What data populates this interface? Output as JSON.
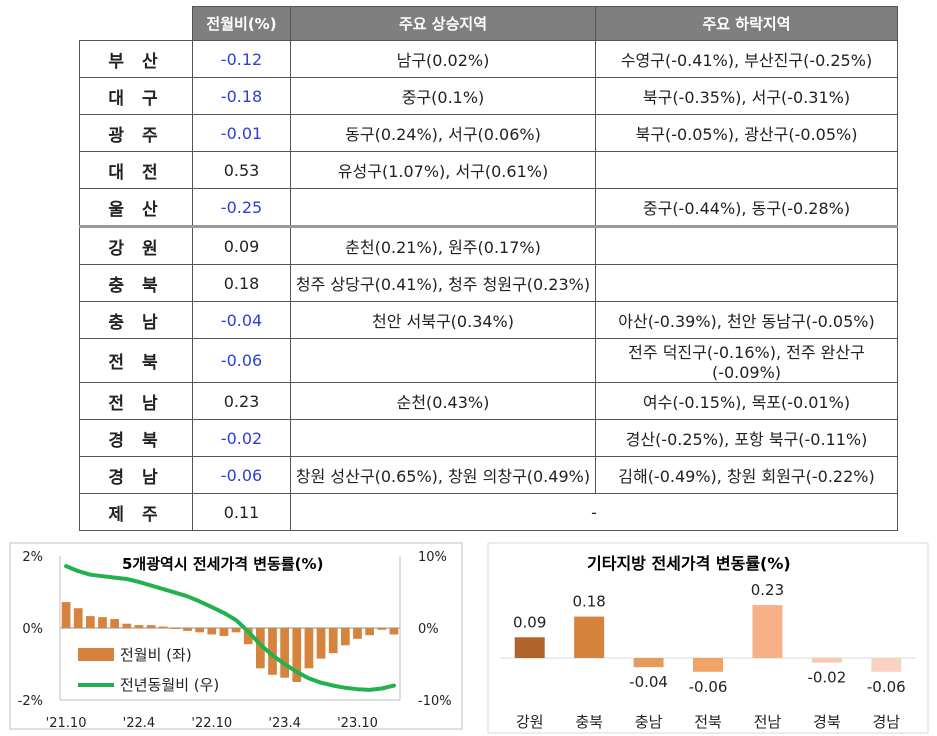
{
  "table": {
    "headers": [
      "",
      "전월비(%)",
      "주요 상승지역",
      "주요 하락지역"
    ],
    "rows": [
      {
        "region": "부 산",
        "value": "-0.12",
        "neg": true,
        "up": "남구(0.02%)",
        "down": "수영구(-0.41%), 부산진구(-0.25%)"
      },
      {
        "region": "대 구",
        "value": "-0.18",
        "neg": true,
        "up": "중구(0.1%)",
        "down": "북구(-0.35%), 서구(-0.31%)"
      },
      {
        "region": "광 주",
        "value": "-0.01",
        "neg": true,
        "up": "동구(0.24%), 서구(0.06%)",
        "down": "북구(-0.05%), 광산구(-0.05%)"
      },
      {
        "region": "대 전",
        "value": "0.53",
        "neg": false,
        "up": "유성구(1.07%), 서구(0.61%)",
        "down": ""
      },
      {
        "region": "울 산",
        "value": "-0.25",
        "neg": true,
        "up": "",
        "down": "중구(-0.44%), 동구(-0.28%)"
      },
      {
        "region": "강 원",
        "value": "0.09",
        "neg": false,
        "up": "춘천(0.21%), 원주(0.17%)",
        "down": ""
      },
      {
        "region": "충 북",
        "value": "0.18",
        "neg": false,
        "up": "청주 상당구(0.41%), 청주 청원구(0.23%)",
        "down": ""
      },
      {
        "region": "충 남",
        "value": "-0.04",
        "neg": true,
        "up": "천안 서북구(0.34%)",
        "down": "아산(-0.39%), 천안 동남구(-0.05%)"
      },
      {
        "region": "전 북",
        "value": "-0.06",
        "neg": true,
        "up": "",
        "down": "전주 덕진구(-0.16%), 전주 완산구(-0.09%)"
      },
      {
        "region": "전 남",
        "value": "0.23",
        "neg": false,
        "up": "순천(0.43%)",
        "down": "여수(-0.15%), 목포(-0.01%)"
      },
      {
        "region": "경 북",
        "value": "-0.02",
        "neg": true,
        "up": "",
        "down": "경산(-0.25%), 포항 북구(-0.11%)"
      },
      {
        "region": "경 남",
        "value": "-0.06",
        "neg": true,
        "up": "창원 성산구(0.65%), 창원 의창구(0.49%)",
        "down": "김해(-0.49%), 창원 회원구(-0.22%)"
      },
      {
        "region": "제 주",
        "value": "0.11",
        "neg": false,
        "merged": "-"
      }
    ]
  },
  "chart_data": [
    {
      "type": "bar",
      "title": "5개광역시 전세가격 변동률(%)",
      "left_axis": {
        "ticks": [
          "2%",
          "0%",
          "-2%"
        ],
        "ylim": [
          -2,
          2
        ]
      },
      "right_axis": {
        "ticks": [
          "10%",
          "0%",
          "-10%"
        ],
        "ylim": [
          -10,
          10
        ]
      },
      "x_ticks": [
        "'21.10",
        "'22.4",
        "'22.10",
        "'23.4",
        "'23.10"
      ],
      "series": [
        {
          "name": "전월비 (좌)",
          "axis": "left",
          "color": "#d6843d",
          "values": [
            0.72,
            0.55,
            0.33,
            0.3,
            0.25,
            0.12,
            0.08,
            0.08,
            0.04,
            0.0,
            -0.08,
            -0.12,
            -0.18,
            -0.22,
            -0.12,
            -0.45,
            -1.12,
            -1.3,
            -1.38,
            -1.5,
            -1.12,
            -0.85,
            -0.7,
            -0.48,
            -0.3,
            -0.2,
            -0.05,
            -0.18
          ]
        },
        {
          "name": "전년동월비 (우)",
          "axis": "right",
          "color": "#22b14c",
          "values": [
            8.6,
            7.9,
            7.4,
            7.2,
            7.0,
            6.8,
            6.4,
            5.9,
            5.4,
            4.9,
            4.4,
            3.7,
            2.9,
            2.1,
            1.1,
            -0.5,
            -2.3,
            -3.8,
            -5.0,
            -6.1,
            -7.0,
            -7.6,
            -8.0,
            -8.3,
            -8.5,
            -8.6,
            -8.4,
            -8.0
          ]
        }
      ]
    },
    {
      "type": "bar",
      "title": "기타지방 전세가격 변동률(%)",
      "categories": [
        "강원",
        "충북",
        "충남",
        "전북",
        "전남",
        "경북",
        "경남"
      ],
      "values": [
        0.09,
        0.18,
        -0.04,
        -0.06,
        0.23,
        -0.02,
        -0.06
      ],
      "labels": [
        "0.09",
        "0.18",
        "-0.04",
        "-0.06",
        "0.23",
        "-0.02",
        "-0.06"
      ],
      "colors": [
        "#b0632b",
        "#d6843d",
        "#e59b5c",
        "#f0a566",
        "#f7b088",
        "#f8c8b0",
        "#f9d2c0"
      ]
    }
  ]
}
